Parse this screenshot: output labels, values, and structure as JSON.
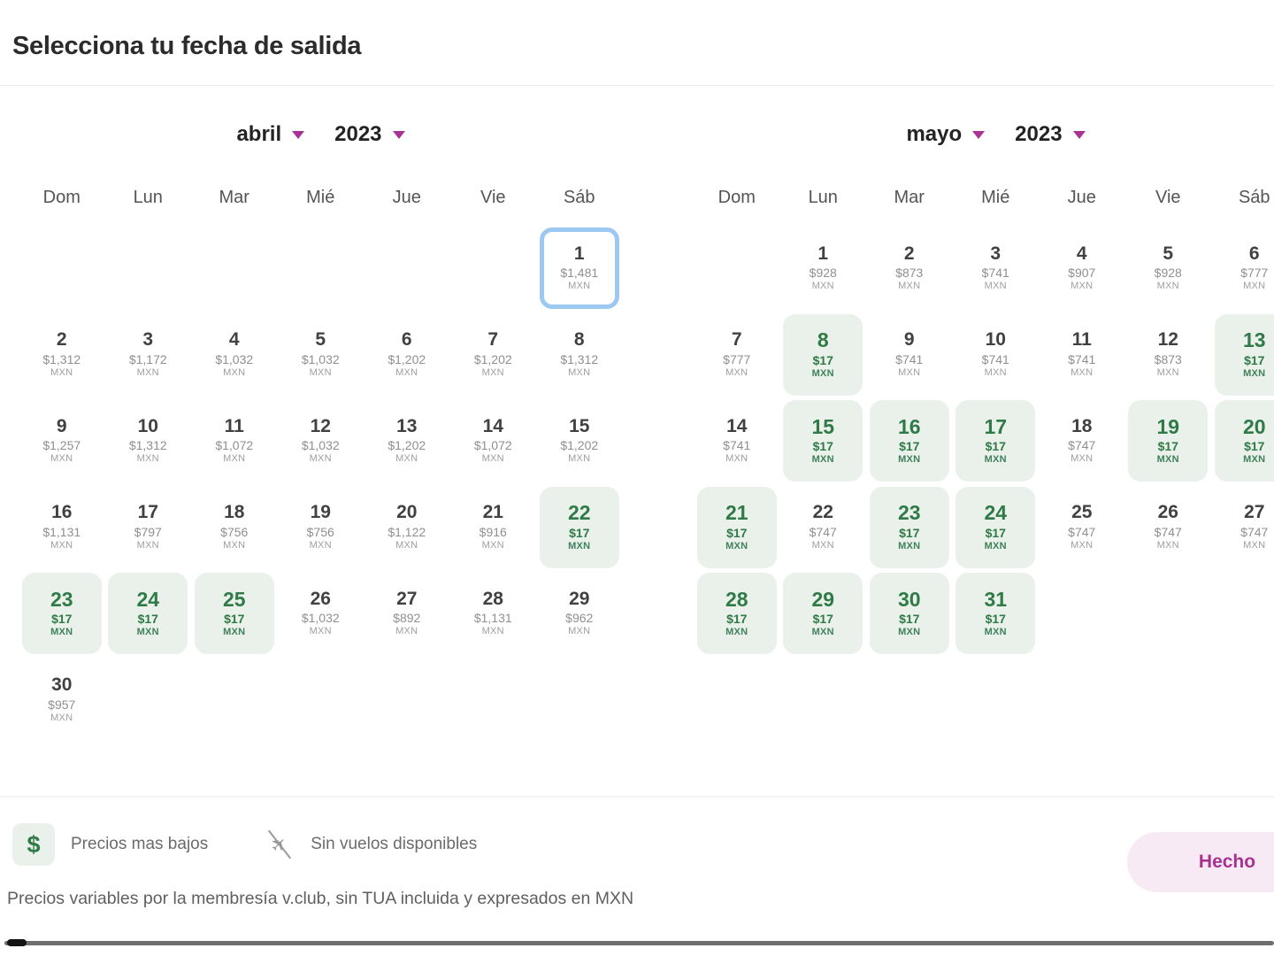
{
  "page": {
    "title": "Selecciona tu fecha de salida",
    "note": "Precios variables por la membresía v.club, sin TUA incluida y expresados en MXN",
    "done_label": "Hecho"
  },
  "legend": {
    "low_price_icon": "$",
    "low_price_label": "Precios mas bajos",
    "no_flights_label": "Sin vuelos disponibles"
  },
  "colors": {
    "accent_magenta": "#a93394",
    "low_price_green": "#2f7a47",
    "low_price_bg": "#e9f1ea",
    "selected_border_blue": "#9cc8f2",
    "done_button_bg": "#f8eaf5",
    "done_button_text": "#a73390"
  },
  "calendars": [
    {
      "month_label": "abril",
      "year_label": "2023",
      "weekdays": [
        "Dom",
        "Lun",
        "Mar",
        "Mié",
        "Jue",
        "Vie",
        "Sáb"
      ],
      "currency": "MXN",
      "weeks": [
        [
          null,
          null,
          null,
          null,
          null,
          null,
          {
            "day": "1",
            "price": "$1,481",
            "state": "selected"
          }
        ],
        [
          {
            "day": "2",
            "price": "$1,312"
          },
          {
            "day": "3",
            "price": "$1,172"
          },
          {
            "day": "4",
            "price": "$1,032"
          },
          {
            "day": "5",
            "price": "$1,032"
          },
          {
            "day": "6",
            "price": "$1,202"
          },
          {
            "day": "7",
            "price": "$1,202"
          },
          {
            "day": "8",
            "price": "$1,312"
          }
        ],
        [
          {
            "day": "9",
            "price": "$1,257"
          },
          {
            "day": "10",
            "price": "$1,312"
          },
          {
            "day": "11",
            "price": "$1,072"
          },
          {
            "day": "12",
            "price": "$1,032"
          },
          {
            "day": "13",
            "price": "$1,202"
          },
          {
            "day": "14",
            "price": "$1,072"
          },
          {
            "day": "15",
            "price": "$1,202"
          }
        ],
        [
          {
            "day": "16",
            "price": "$1,131"
          },
          {
            "day": "17",
            "price": "$797"
          },
          {
            "day": "18",
            "price": "$756"
          },
          {
            "day": "19",
            "price": "$756"
          },
          {
            "day": "20",
            "price": "$1,122"
          },
          {
            "day": "21",
            "price": "$916"
          },
          {
            "day": "22",
            "price": "$17",
            "state": "low"
          }
        ],
        [
          {
            "day": "23",
            "price": "$17",
            "state": "low"
          },
          {
            "day": "24",
            "price": "$17",
            "state": "low"
          },
          {
            "day": "25",
            "price": "$17",
            "state": "low"
          },
          {
            "day": "26",
            "price": "$1,032"
          },
          {
            "day": "27",
            "price": "$892"
          },
          {
            "day": "28",
            "price": "$1,131"
          },
          {
            "day": "29",
            "price": "$962"
          }
        ],
        [
          {
            "day": "30",
            "price": "$957"
          },
          null,
          null,
          null,
          null,
          null,
          null
        ]
      ]
    },
    {
      "month_label": "mayo",
      "year_label": "2023",
      "weekdays": [
        "Dom",
        "Lun",
        "Mar",
        "Mié",
        "Jue",
        "Vie",
        "Sáb"
      ],
      "currency": "MXN",
      "weeks": [
        [
          null,
          {
            "day": "1",
            "price": "$928"
          },
          {
            "day": "2",
            "price": "$873"
          },
          {
            "day": "3",
            "price": "$741"
          },
          {
            "day": "4",
            "price": "$907"
          },
          {
            "day": "5",
            "price": "$928"
          },
          {
            "day": "6",
            "price": "$777"
          }
        ],
        [
          {
            "day": "7",
            "price": "$777"
          },
          {
            "day": "8",
            "price": "$17",
            "state": "low"
          },
          {
            "day": "9",
            "price": "$741"
          },
          {
            "day": "10",
            "price": "$741"
          },
          {
            "day": "11",
            "price": "$741"
          },
          {
            "day": "12",
            "price": "$873"
          },
          {
            "day": "13",
            "price": "$17",
            "state": "low"
          }
        ],
        [
          {
            "day": "14",
            "price": "$741"
          },
          {
            "day": "15",
            "price": "$17",
            "state": "low"
          },
          {
            "day": "16",
            "price": "$17",
            "state": "low"
          },
          {
            "day": "17",
            "price": "$17",
            "state": "low"
          },
          {
            "day": "18",
            "price": "$747"
          },
          {
            "day": "19",
            "price": "$17",
            "state": "low"
          },
          {
            "day": "20",
            "price": "$17",
            "state": "low"
          }
        ],
        [
          {
            "day": "21",
            "price": "$17",
            "state": "low"
          },
          {
            "day": "22",
            "price": "$747"
          },
          {
            "day": "23",
            "price": "$17",
            "state": "low"
          },
          {
            "day": "24",
            "price": "$17",
            "state": "low"
          },
          {
            "day": "25",
            "price": "$747"
          },
          {
            "day": "26",
            "price": "$747"
          },
          {
            "day": "27",
            "price": "$747"
          }
        ],
        [
          {
            "day": "28",
            "price": "$17",
            "state": "low"
          },
          {
            "day": "29",
            "price": "$17",
            "state": "low"
          },
          {
            "day": "30",
            "price": "$17",
            "state": "low"
          },
          {
            "day": "31",
            "price": "$17",
            "state": "low"
          },
          null,
          null,
          null
        ]
      ]
    }
  ]
}
